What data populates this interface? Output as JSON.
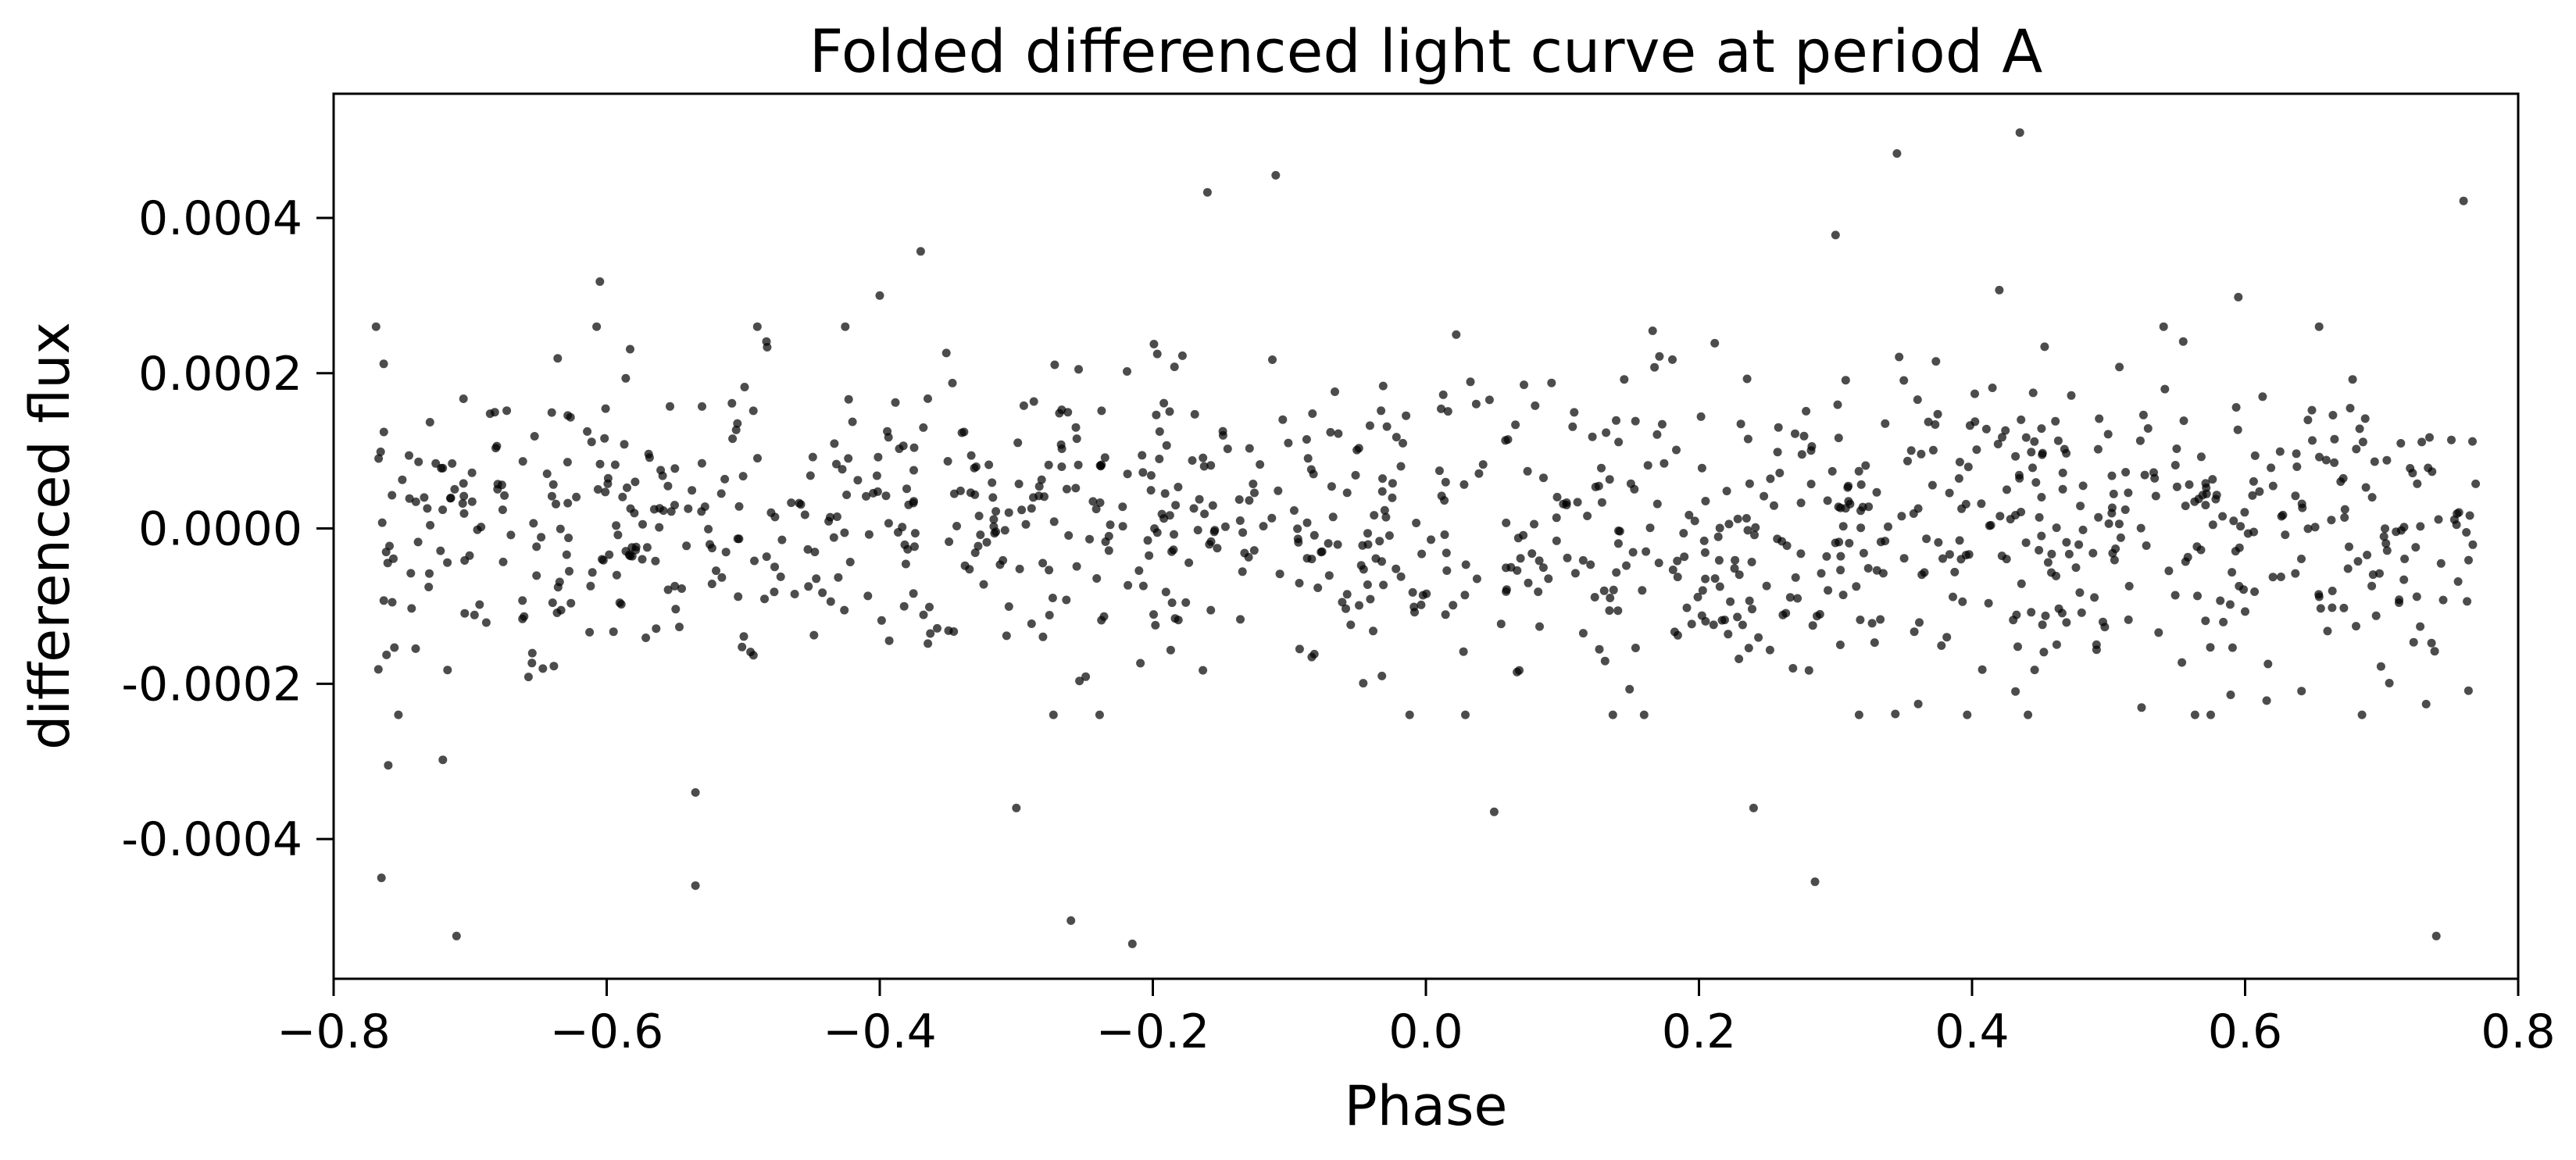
{
  "chart_data": {
    "type": "scatter",
    "title": "Folded differenced light curve at period A",
    "xlabel": "Phase",
    "ylabel": "differenced flux",
    "xlim": [
      -0.8,
      0.8
    ],
    "ylim": [
      -0.00058,
      0.00056
    ],
    "xticks": [
      -0.8,
      -0.6,
      -0.4,
      -0.2,
      0.0,
      0.2,
      0.4,
      0.6,
      0.8
    ],
    "xtick_labels": [
      "−0.8",
      "−0.6",
      "−0.4",
      "−0.2",
      "0.0",
      "0.2",
      "0.4",
      "0.6",
      "0.8"
    ],
    "yticks": [
      -0.0004,
      -0.0002,
      0.0,
      0.0002,
      0.0004
    ],
    "ytick_labels": [
      "-0.0004",
      "-0.0002",
      "0.0000",
      "0.0002",
      "0.0004"
    ],
    "grid": false,
    "marker_color": "#000000",
    "marker_opacity": 0.7,
    "phase_range": [
      -0.77,
      0.77
    ],
    "point_count": 1100,
    "scatter_sd": 0.0001,
    "notable_points": [
      {
        "x": -0.765,
        "y": -0.00045
      },
      {
        "x": -0.76,
        "y": -0.000305
      },
      {
        "x": -0.71,
        "y": -0.000525
      },
      {
        "x": -0.72,
        "y": -0.000298
      },
      {
        "x": -0.605,
        "y": 0.000318
      },
      {
        "x": -0.535,
        "y": -0.00046
      },
      {
        "x": -0.535,
        "y": -0.00034
      },
      {
        "x": -0.37,
        "y": 0.000357
      },
      {
        "x": -0.3,
        "y": -0.00036
      },
      {
        "x": -0.26,
        "y": -0.000505
      },
      {
        "x": -0.215,
        "y": -0.000535
      },
      {
        "x": -0.16,
        "y": 0.000433
      },
      {
        "x": -0.11,
        "y": 0.000455
      },
      {
        "x": 0.05,
        "y": -0.000365
      },
      {
        "x": 0.24,
        "y": -0.00036
      },
      {
        "x": 0.285,
        "y": -0.000455
      },
      {
        "x": 0.3,
        "y": 0.000378
      },
      {
        "x": 0.345,
        "y": 0.000483
      },
      {
        "x": 0.435,
        "y": 0.00051
      },
      {
        "x": 0.42,
        "y": 0.000307
      },
      {
        "x": 0.74,
        "y": -0.000525
      },
      {
        "x": 0.76,
        "y": 0.000422
      },
      {
        "x": 0.595,
        "y": 0.000298
      },
      {
        "x": -0.4,
        "y": 0.0003
      }
    ]
  }
}
